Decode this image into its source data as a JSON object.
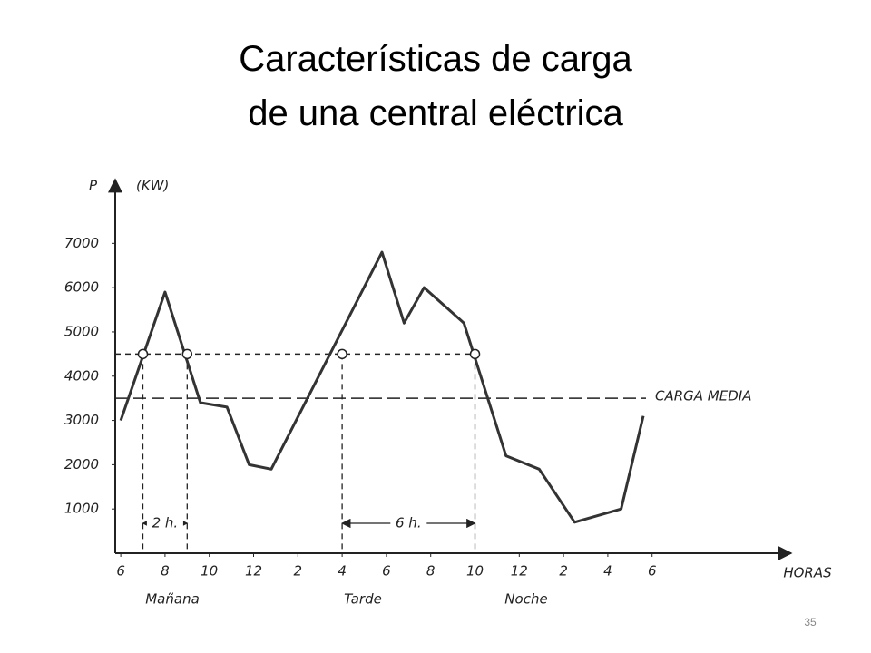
{
  "title_lines": [
    "Características de carga",
    "de una central eléctrica"
  ],
  "page_number": "35",
  "chart_data": {
    "type": "line",
    "y_label": "P",
    "y_unit": "(KW)",
    "x_label": "HORAS",
    "x": [
      6,
      8,
      9.6,
      10.8,
      11.8,
      12.8,
      17.8,
      18.8,
      19.7,
      21.5,
      23.4,
      24.9,
      26.5,
      28.6,
      29.6
    ],
    "values": [
      3000,
      5900,
      3400,
      3300,
      2000,
      1900,
      6800,
      5200,
      6000,
      5200,
      2200,
      1900,
      700,
      1000,
      3100
    ],
    "color": "#333333",
    "xlim": [
      5.75,
      36.2
    ],
    "ylim": [
      0,
      8400
    ],
    "xticks": [
      6,
      8,
      10,
      12,
      {
        "value": 14,
        "label": "2"
      },
      {
        "value": 16,
        "label": "4"
      },
      {
        "value": 18,
        "label": "6"
      },
      {
        "value": 20,
        "label": "8"
      },
      {
        "value": 22,
        "label": "10"
      },
      {
        "value": 24,
        "label": "12"
      },
      {
        "value": 26,
        "label": "2"
      },
      {
        "value": 28,
        "label": "4"
      },
      {
        "value": 30,
        "label": "6"
      }
    ],
    "yticks": [
      1000,
      2000,
      3000,
      4000,
      5000,
      6000,
      7000
    ],
    "reference_lines": [
      {
        "value": 3500,
        "label": "CARGA MEDIA"
      },
      {
        "value": 4500
      }
    ],
    "markers_x": [
      7,
      9,
      16,
      22
    ],
    "spans": [
      {
        "from": 7,
        "to": 9,
        "label": "2 h."
      },
      {
        "from": 16,
        "to": 22,
        "label": "6 h."
      }
    ],
    "period_labels": [
      "Mañana",
      "Tarde",
      "Noche"
    ]
  }
}
